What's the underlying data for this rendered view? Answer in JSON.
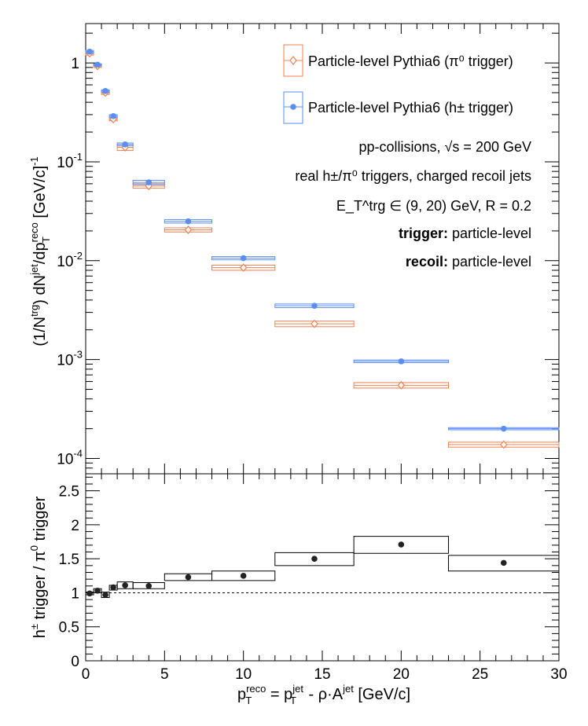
{
  "top_panel": {
    "ylabel": "(1/N^trg) dN^jet/dp_T^reco [GeV/c]^-1",
    "ytick_labels": [
      "1",
      "10^-1",
      "10^-2",
      "10^-3",
      "10^-4"
    ],
    "legend": {
      "pi0": "Particle-level Pythia6 (π⁰ trigger)",
      "hpm": "Particle-level Pythia6 (h± trigger)"
    },
    "annotations": {
      "line1": "pp-collisions, √s = 200 GeV",
      "line2": "real h±/π⁰ triggers, charged recoil jets",
      "line3": "E_T^trg ∈ (9, 20) GeV, R = 0.2",
      "line4_bold": "trigger:",
      "line4_rest": " particle-level",
      "line5_bold": "recoil:",
      "line5_rest": " particle-level"
    }
  },
  "bottom_panel": {
    "ylabel": "h± trigger / π⁰ trigger",
    "ytick_labels": [
      "0",
      "0.5",
      "1",
      "1.5",
      "2",
      "2.5"
    ],
    "xtick_labels": [
      "0",
      "5",
      "10",
      "15",
      "20",
      "25",
      "30"
    ],
    "xlabel": "p_T^reco = p_T^jet - ρ·A^jet [GeV/c]"
  },
  "colors": {
    "pi0": "#f08050",
    "hpm": "#5b8ef0",
    "ratio": "#222222"
  },
  "chart_data": [
    {
      "type": "scatter",
      "yscale": "log",
      "xlim": [
        0,
        30
      ],
      "ylim": [
        7e-05,
        2.5
      ],
      "series": [
        {
          "name": "Particle-level Pythia6 (π⁰ trigger)",
          "marker": "open-diamond",
          "x": [
            0.25,
            0.75,
            1.25,
            1.75,
            2.5,
            4.0,
            6.5,
            10.0,
            14.5,
            20.0,
            26.5
          ],
          "xerr": [
            0.25,
            0.25,
            0.25,
            0.25,
            0.5,
            1.0,
            1.5,
            2.0,
            2.5,
            3.0,
            3.5
          ],
          "y": [
            1.25,
            0.93,
            0.5,
            0.27,
            0.14,
            0.057,
            0.0205,
            0.0085,
            0.0023,
            0.00055,
            0.000138
          ],
          "sys_low": [
            1.2,
            0.9,
            0.48,
            0.26,
            0.13,
            0.054,
            0.0195,
            0.008,
            0.00215,
            0.000515,
            0.00013
          ],
          "sys_high": [
            1.3,
            0.96,
            0.52,
            0.28,
            0.15,
            0.06,
            0.0215,
            0.009,
            0.00245,
            0.000585,
            0.000146
          ]
        },
        {
          "name": "Particle-level Pythia6 (h± trigger)",
          "marker": "filled-circle",
          "x": [
            0.25,
            0.75,
            1.25,
            1.75,
            2.5,
            4.0,
            6.5,
            10.0,
            14.5,
            20.0,
            26.5
          ],
          "xerr": [
            0.25,
            0.25,
            0.25,
            0.25,
            0.5,
            1.0,
            1.5,
            2.0,
            2.5,
            3.0,
            3.5
          ],
          "y": [
            1.3,
            0.96,
            0.52,
            0.29,
            0.15,
            0.062,
            0.025,
            0.0106,
            0.0035,
            0.00096,
            0.0002
          ],
          "sys_low": [
            1.26,
            0.94,
            0.505,
            0.28,
            0.145,
            0.059,
            0.024,
            0.0102,
            0.00335,
            0.00093,
            0.000195
          ],
          "sys_high": [
            1.34,
            0.98,
            0.535,
            0.3,
            0.155,
            0.065,
            0.026,
            0.011,
            0.00365,
            0.00099,
            0.000205
          ]
        }
      ]
    },
    {
      "type": "scatter",
      "xlim": [
        0,
        30
      ],
      "ylim": [
        0,
        2.75
      ],
      "reference_line": 1,
      "series": [
        {
          "marker": "filled-circle",
          "x": [
            0.25,
            0.75,
            1.25,
            1.75,
            2.5,
            4.0,
            6.5,
            10.0,
            14.5,
            20.0,
            26.5
          ],
          "xerr": [
            0.25,
            0.25,
            0.25,
            0.25,
            0.5,
            1.0,
            1.5,
            2.0,
            2.5,
            3.0,
            3.5
          ],
          "y": [
            0.99,
            1.03,
            0.97,
            1.08,
            1.11,
            1.1,
            1.23,
            1.25,
            1.5,
            1.71,
            1.44
          ],
          "sys_low": [
            0.97,
            1.0,
            0.93,
            1.04,
            1.06,
            1.06,
            1.18,
            1.18,
            1.4,
            1.58,
            1.32
          ],
          "sys_high": [
            1.01,
            1.06,
            1.01,
            1.11,
            1.16,
            1.15,
            1.28,
            1.32,
            1.59,
            1.83,
            1.55
          ]
        }
      ]
    }
  ]
}
